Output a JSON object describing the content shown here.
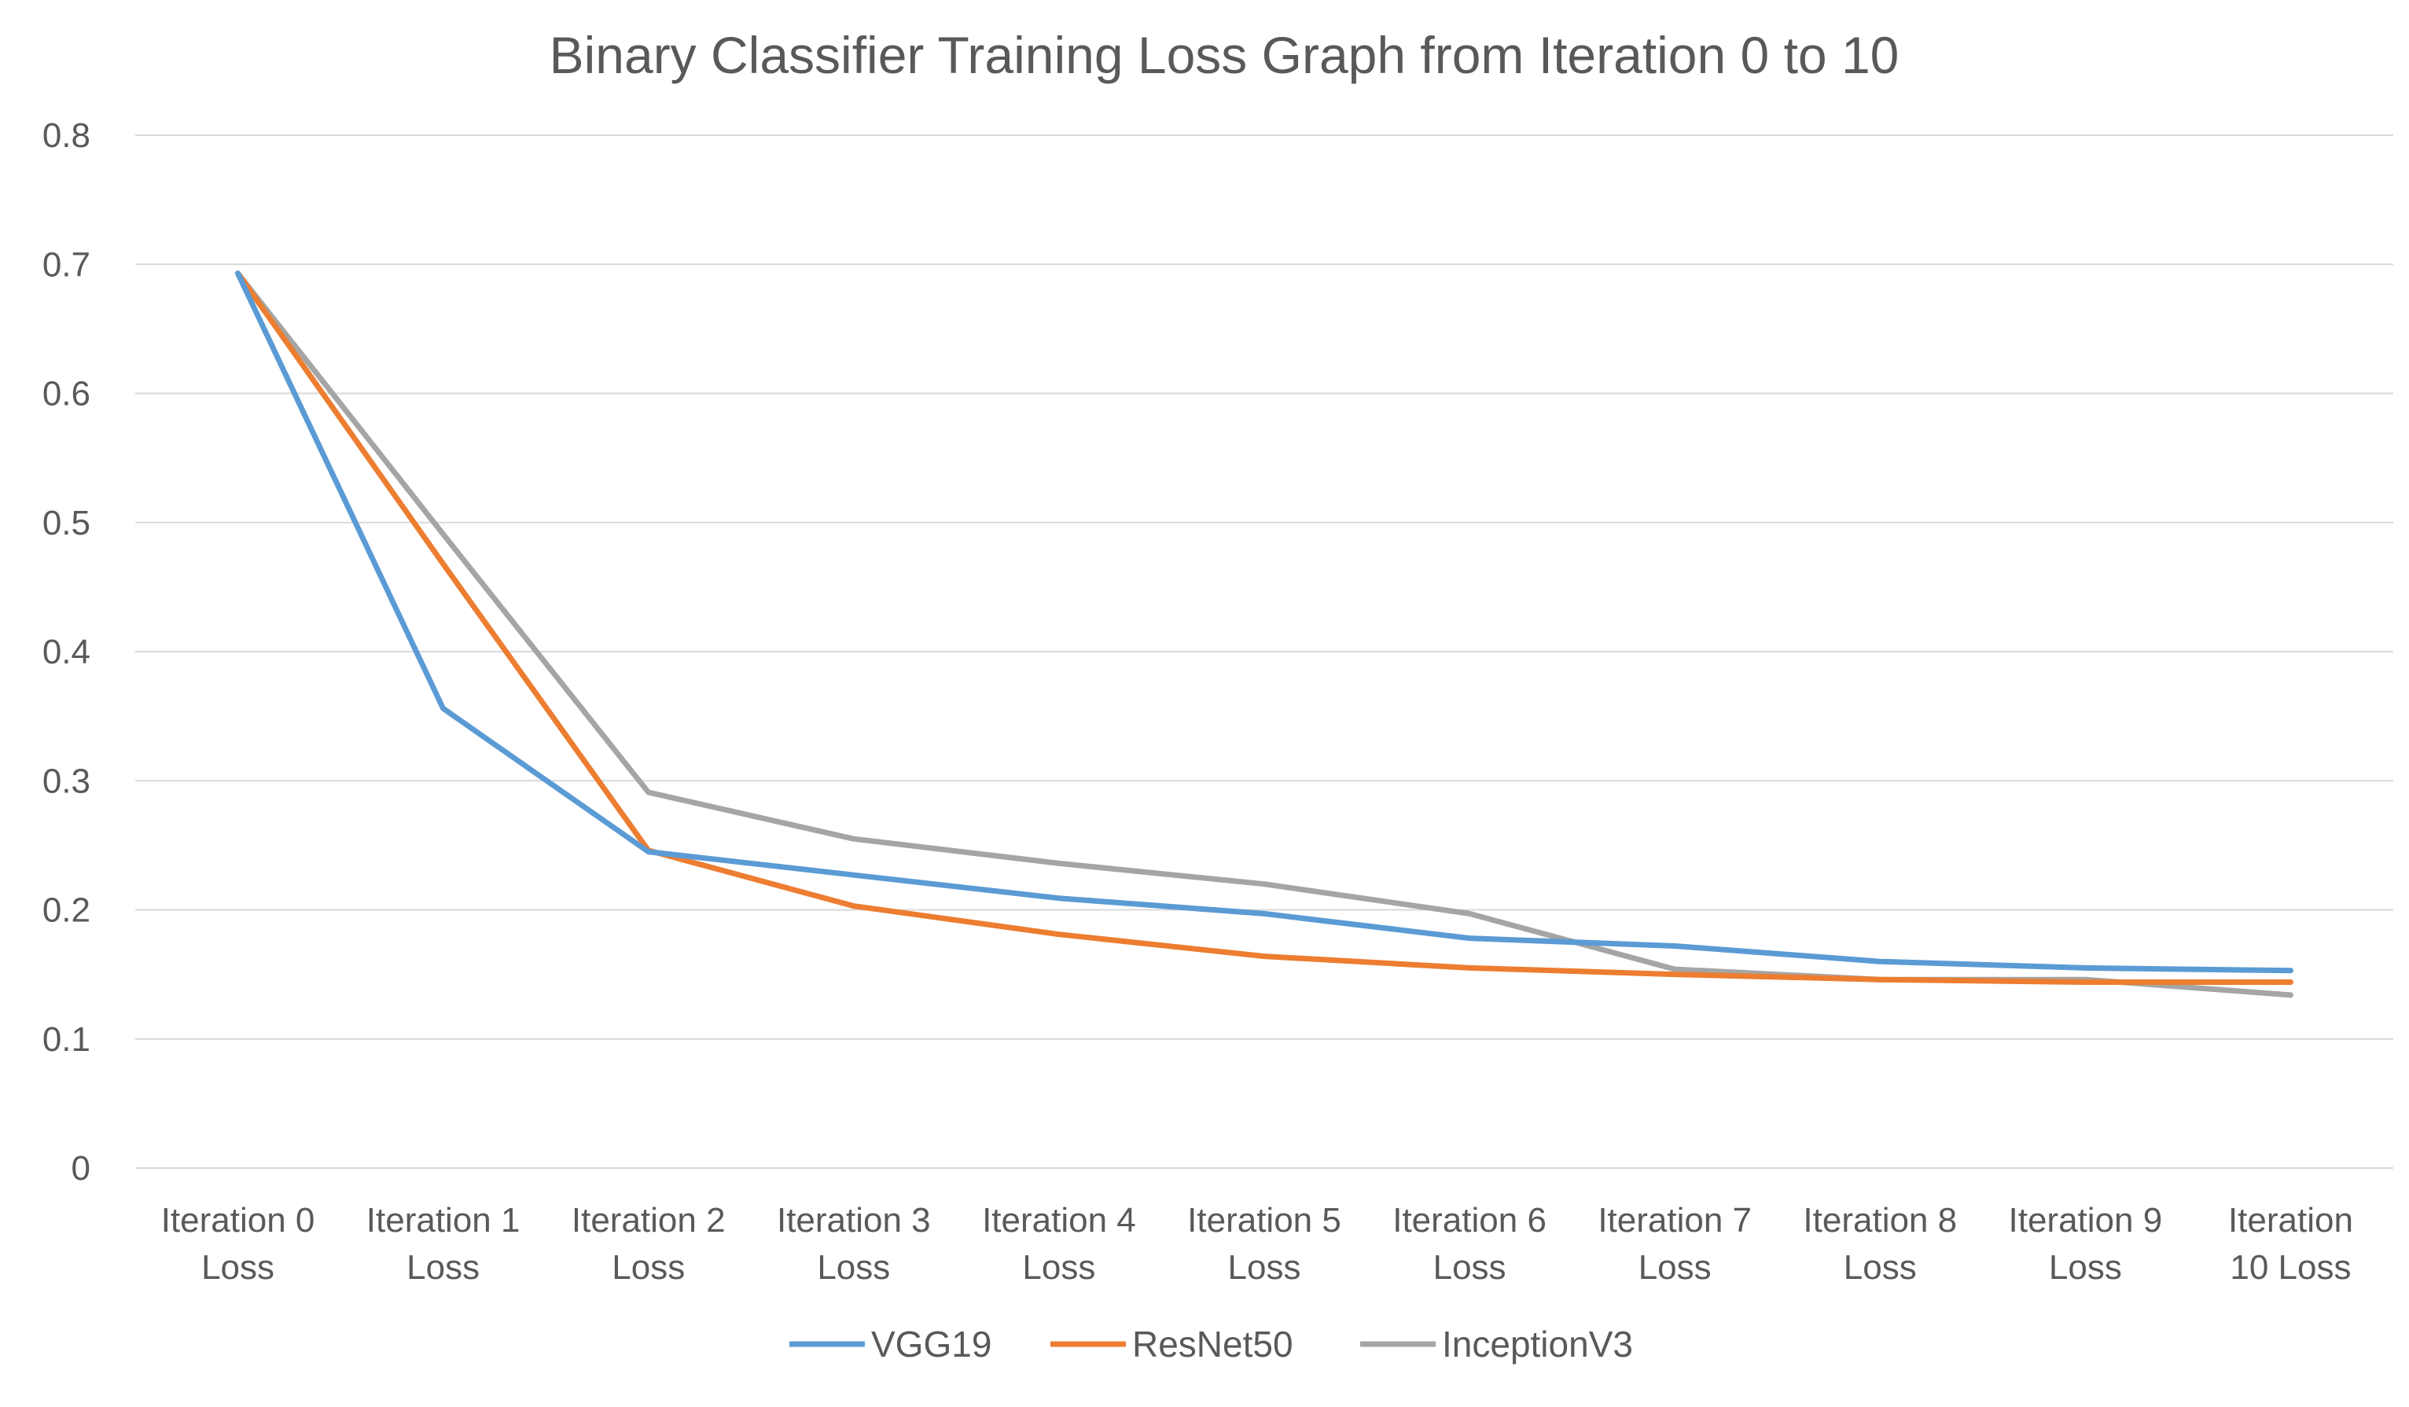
{
  "chart_data": {
    "type": "line",
    "title": "Binary Classifier Training Loss Graph from Iteration 0 to 10",
    "xlabel": "",
    "ylabel": "",
    "ylim": [
      0,
      0.8
    ],
    "yticks": [
      "0",
      "0.1",
      "0.2",
      "0.3",
      "0.4",
      "0.5",
      "0.6",
      "0.7",
      "0.8"
    ],
    "grid": true,
    "legend_position": "bottom-center",
    "categories": [
      [
        "Iteration 0",
        "Loss"
      ],
      [
        "Iteration 1",
        "Loss"
      ],
      [
        "Iteration 2",
        "Loss"
      ],
      [
        "Iteration 3",
        "Loss"
      ],
      [
        "Iteration 4",
        "Loss"
      ],
      [
        "Iteration 5",
        "Loss"
      ],
      [
        "Iteration 6",
        "Loss"
      ],
      [
        "Iteration 7",
        "Loss"
      ],
      [
        "Iteration 8",
        "Loss"
      ],
      [
        "Iteration 9",
        "Loss"
      ],
      [
        "Iteration",
        "10 Loss"
      ]
    ],
    "series": [
      {
        "name": "VGG19",
        "color": "#5b9bd5",
        "values": [
          0.693,
          0.356,
          0.245,
          0.227,
          0.209,
          0.197,
          0.178,
          0.172,
          0.16,
          0.155,
          0.153
        ]
      },
      {
        "name": "ResNet50",
        "color": "#ed7d31",
        "values": [
          0.693,
          0.468,
          0.246,
          0.203,
          0.181,
          0.164,
          0.155,
          0.15,
          0.146,
          0.144,
          0.144
        ]
      },
      {
        "name": "InceptionV3",
        "color": "#a5a5a5",
        "values": [
          0.693,
          0.491,
          0.291,
          0.255,
          0.236,
          0.22,
          0.197,
          0.154,
          0.146,
          0.146,
          0.134
        ]
      }
    ]
  }
}
